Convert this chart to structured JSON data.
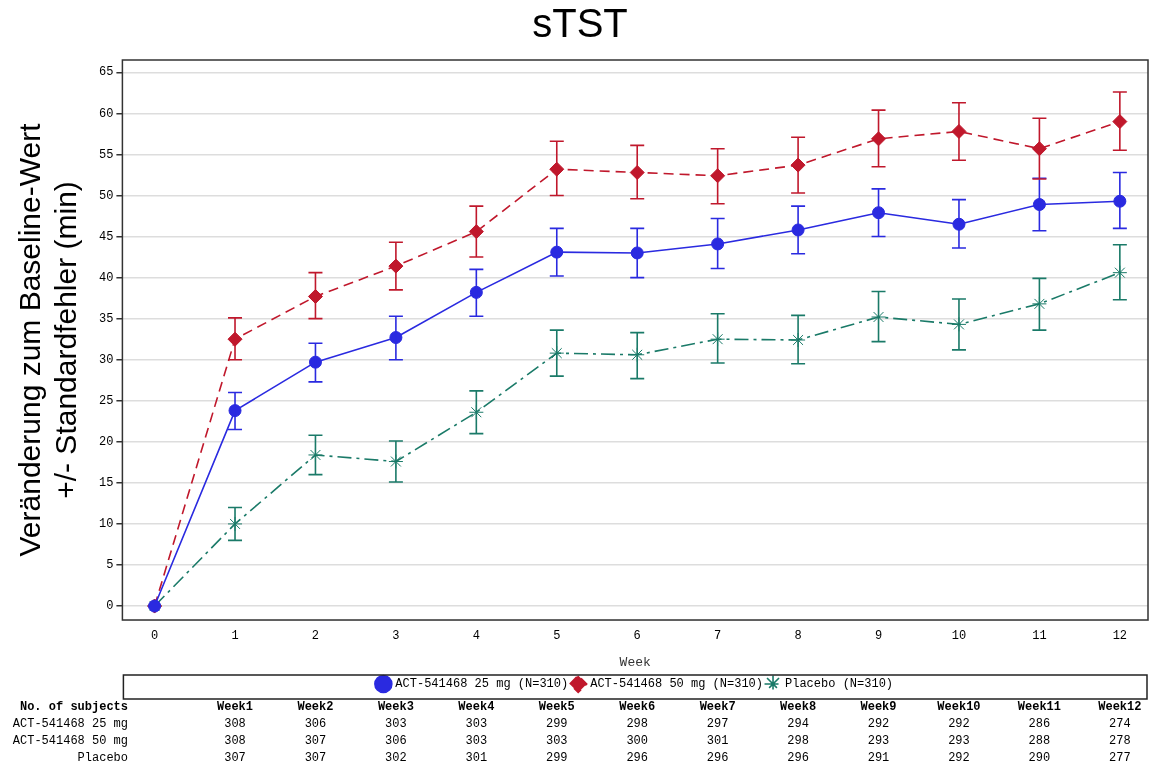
{
  "chart_data": {
    "type": "line",
    "title": "sTST",
    "xlabel": "Week",
    "ylabel": "Veränderung zum Baseline-Wert\n+/- Standardfehler (min)",
    "x": [
      0,
      1,
      2,
      3,
      4,
      5,
      6,
      7,
      8,
      9,
      10,
      11,
      12
    ],
    "xlim": [
      -0.4,
      12.35
    ],
    "xticks": [
      0,
      1,
      2,
      3,
      4,
      5,
      6,
      7,
      8,
      9,
      10,
      11,
      12
    ],
    "ylim": [
      -1.7,
      66.5
    ],
    "yticks": [
      0,
      5,
      10,
      15,
      20,
      25,
      30,
      35,
      40,
      45,
      50,
      55,
      60,
      65
    ],
    "grid": "y",
    "legend": "bottom",
    "series": [
      {
        "name": "ACT-541468 25 mg (N=310)",
        "color": "#2a2ae0",
        "marker": "circle",
        "line_style": "solid",
        "values": [
          0,
          23.8,
          29.7,
          32.7,
          38.2,
          43.1,
          43.0,
          44.1,
          45.8,
          47.9,
          46.5,
          48.9,
          49.3
        ],
        "errors": [
          null,
          [
            21.5,
            26
          ],
          [
            27.3,
            32
          ],
          [
            30,
            35.3
          ],
          [
            35.3,
            41
          ],
          [
            40.2,
            46
          ],
          [
            40,
            46
          ],
          [
            41.1,
            47.2
          ],
          [
            42.9,
            48.7
          ],
          [
            45,
            50.8
          ],
          [
            43.6,
            49.5
          ],
          [
            45.7,
            52.1
          ],
          [
            46,
            52.8
          ]
        ]
      },
      {
        "name": "ACT-541468 50 mg (N=310)",
        "color": "#c0182c",
        "marker": "diamond",
        "line_style": "dashed",
        "values": [
          0,
          32.5,
          37.7,
          41.4,
          45.6,
          53.2,
          52.8,
          52.4,
          53.7,
          56.9,
          57.8,
          55.7,
          59
        ],
        "errors": [
          null,
          [
            30,
            35.1
          ],
          [
            35,
            40.6
          ],
          [
            38.5,
            44.3
          ],
          [
            42.5,
            48.7
          ],
          [
            50,
            56.6
          ],
          [
            49.6,
            56.1
          ],
          [
            49,
            55.7
          ],
          [
            50.3,
            57.1
          ],
          [
            53.5,
            60.4
          ],
          [
            54.3,
            61.3
          ],
          [
            52,
            59.4
          ],
          [
            55.5,
            62.6
          ]
        ]
      },
      {
        "name": "Placebo (N=310)",
        "color": "#1a7a68",
        "marker": "cross",
        "line_style": "dashdot",
        "values": [
          0,
          10,
          18.4,
          17.6,
          23.6,
          30.8,
          30.6,
          32.5,
          32.4,
          35.2,
          34.3,
          36.8,
          40.6
        ],
        "errors": [
          null,
          [
            8,
            12
          ],
          [
            16,
            20.8
          ],
          [
            15.1,
            20.1
          ],
          [
            21,
            26.2
          ],
          [
            28,
            33.6
          ],
          [
            27.7,
            33.3
          ],
          [
            29.6,
            35.6
          ],
          [
            29.5,
            35.4
          ],
          [
            32.2,
            38.3
          ],
          [
            31.2,
            37.4
          ],
          [
            33.6,
            39.9
          ],
          [
            37.3,
            44
          ]
        ]
      }
    ],
    "annotations": [
      "No. of subjects",
      "Week1",
      "Week2",
      "Week3",
      "Week4",
      "Week5",
      "Week6",
      "Week7",
      "Week8",
      "Week9",
      "Week10",
      "Week11",
      "Week12",
      "ACT-541468 25 mg",
      "308",
      "306",
      "303",
      "303",
      "299",
      "298",
      "297",
      "294",
      "292",
      "292",
      "286",
      "274",
      "ACT-541468 50 mg",
      "308",
      "307",
      "306",
      "303",
      "303",
      "300",
      "301",
      "298",
      "293",
      "293",
      "288",
      "278",
      "Placebo",
      "307",
      "307",
      "302",
      "301",
      "299",
      "296",
      "296",
      "296",
      "291",
      "292",
      "290",
      "277"
    ]
  }
}
